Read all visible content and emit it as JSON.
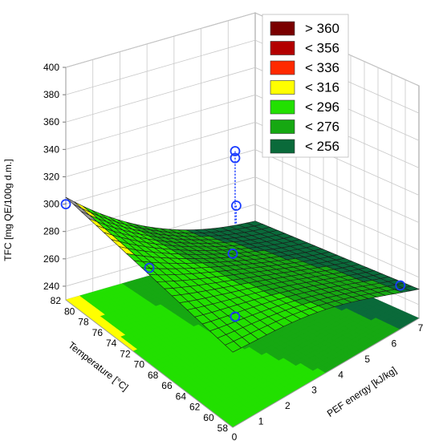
{
  "chart_data": {
    "type": "surface3d",
    "z_axis": {
      "label": "TFC [mg QE/100g d.m.]",
      "ticks": [
        "240",
        "260",
        "280",
        "300",
        "320",
        "340",
        "360",
        "380",
        "400"
      ],
      "range": [
        230,
        400
      ]
    },
    "x_axis": {
      "label": "PEF energy [kJ/kg]",
      "ticks": [
        "0",
        "1",
        "2",
        "3",
        "4",
        "5",
        "6",
        "7"
      ],
      "range": [
        0,
        7
      ]
    },
    "y_axis": {
      "label": "Temperature [°C]",
      "ticks": [
        "58",
        "60",
        "62",
        "64",
        "66",
        "68",
        "70",
        "72",
        "74",
        "76",
        "78",
        "80",
        "82"
      ],
      "range": [
        58,
        82
      ]
    },
    "legend": {
      "placement": "top-right",
      "entries": [
        {
          "label": "> 360",
          "color": "#7a0000"
        },
        {
          "label": "< 356",
          "color": "#b30000"
        },
        {
          "label": "< 336",
          "color": "#ff2a00"
        },
        {
          "label": "< 316",
          "color": "#ffff00"
        },
        {
          "label": "< 296",
          "color": "#22e000"
        },
        {
          "label": "< 276",
          "color": "#16a812"
        },
        {
          "label": "< 256",
          "color": "#0a6a3a"
        }
      ]
    },
    "observations": [
      {
        "pef": 0.0,
        "temp": 70,
        "tfc": 300
      },
      {
        "pef": 0.0,
        "temp": 58,
        "tfc": 357
      },
      {
        "pef": 0.0,
        "temp": 82,
        "tfc": 300
      },
      {
        "pef": 3.2,
        "temp": 70,
        "tfc": 358
      },
      {
        "pef": 3.2,
        "temp": 70,
        "tfc": 353
      },
      {
        "pef": 3.2,
        "temp": 70,
        "tfc": 237
      },
      {
        "pef": 6.3,
        "temp": 58,
        "tfc": 262
      },
      {
        "pef": 6.3,
        "temp": 82,
        "tfc": 263
      }
    ]
  }
}
